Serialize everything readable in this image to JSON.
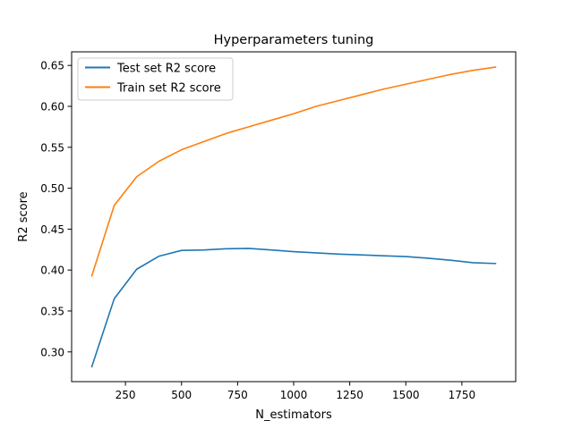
{
  "chart_data": {
    "type": "line",
    "title": "Hyperparameters tuning",
    "xlabel": "N_estimators",
    "ylabel": "R2 score",
    "xlim": [
      10,
      1990
    ],
    "ylim": [
      0.2637,
      0.6666
    ],
    "xticks": [
      250,
      500,
      750,
      1000,
      1250,
      1500,
      1750
    ],
    "xtick_labels": [
      "250",
      "500",
      "750",
      "1000",
      "1250",
      "1500",
      "1750"
    ],
    "yticks": [
      0.3,
      0.35,
      0.4,
      0.45,
      0.5,
      0.55,
      0.6,
      0.65
    ],
    "ytick_labels": [
      "0.30",
      "0.35",
      "0.40",
      "0.45",
      "0.50",
      "0.55",
      "0.60",
      "0.65"
    ],
    "grid": false,
    "legend_position": "upper-left",
    "x": [
      100,
      200,
      300,
      400,
      500,
      600,
      700,
      800,
      900,
      1000,
      1100,
      1200,
      1300,
      1400,
      1500,
      1600,
      1700,
      1800,
      1900
    ],
    "series": [
      {
        "name": "Test set R2 score",
        "color": "#1f77b4",
        "values": [
          0.282,
          0.365,
          0.401,
          0.417,
          0.424,
          0.4245,
          0.426,
          0.4265,
          0.4245,
          0.4225,
          0.421,
          0.4195,
          0.4185,
          0.4175,
          0.4165,
          0.4145,
          0.412,
          0.409,
          0.408
        ]
      },
      {
        "name": "Train set R2 score",
        "color": "#ff7f0e",
        "values": [
          0.393,
          0.479,
          0.514,
          0.533,
          0.547,
          0.557,
          0.567,
          0.575,
          0.583,
          0.591,
          0.6,
          0.607,
          0.614,
          0.621,
          0.627,
          0.633,
          0.639,
          0.644,
          0.648
        ]
      }
    ]
  }
}
